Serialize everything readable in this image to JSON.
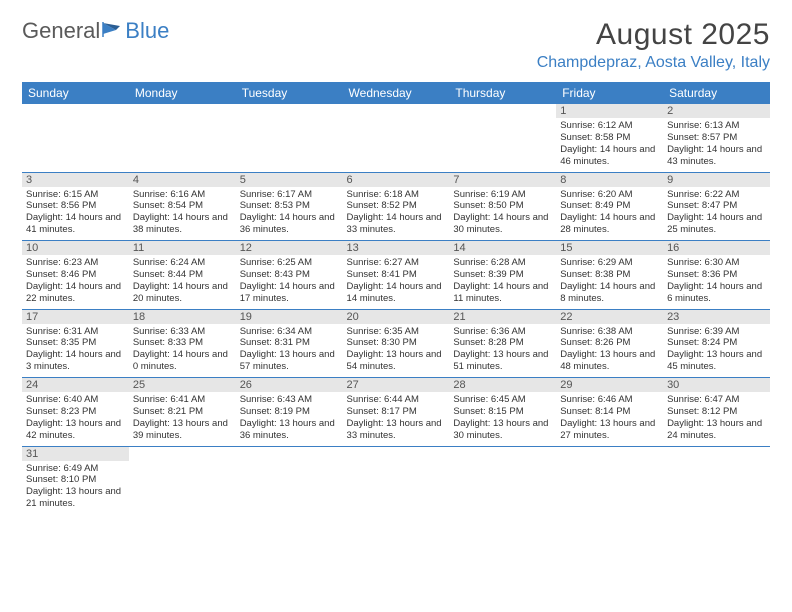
{
  "logo": {
    "word1": "General",
    "word2": "Blue"
  },
  "title": "August 2025",
  "location": "Champdepraz, Aosta Valley, Italy",
  "colors": {
    "header_bg": "#3b7fc4",
    "header_text": "#ffffff",
    "daynum_bg": "#e6e6e6",
    "row_divider": "#3b7fc4",
    "body_text": "#333333",
    "logo_gray": "#5a5a5a",
    "logo_blue": "#3b7fc4"
  },
  "day_headers": [
    "Sunday",
    "Monday",
    "Tuesday",
    "Wednesday",
    "Thursday",
    "Friday",
    "Saturday"
  ],
  "weeks": [
    [
      null,
      null,
      null,
      null,
      null,
      {
        "n": "1",
        "sr": "6:12 AM",
        "ss": "8:58 PM",
        "dl": "14 hours and 46 minutes."
      },
      {
        "n": "2",
        "sr": "6:13 AM",
        "ss": "8:57 PM",
        "dl": "14 hours and 43 minutes."
      }
    ],
    [
      {
        "n": "3",
        "sr": "6:15 AM",
        "ss": "8:56 PM",
        "dl": "14 hours and 41 minutes."
      },
      {
        "n": "4",
        "sr": "6:16 AM",
        "ss": "8:54 PM",
        "dl": "14 hours and 38 minutes."
      },
      {
        "n": "5",
        "sr": "6:17 AM",
        "ss": "8:53 PM",
        "dl": "14 hours and 36 minutes."
      },
      {
        "n": "6",
        "sr": "6:18 AM",
        "ss": "8:52 PM",
        "dl": "14 hours and 33 minutes."
      },
      {
        "n": "7",
        "sr": "6:19 AM",
        "ss": "8:50 PM",
        "dl": "14 hours and 30 minutes."
      },
      {
        "n": "8",
        "sr": "6:20 AM",
        "ss": "8:49 PM",
        "dl": "14 hours and 28 minutes."
      },
      {
        "n": "9",
        "sr": "6:22 AM",
        "ss": "8:47 PM",
        "dl": "14 hours and 25 minutes."
      }
    ],
    [
      {
        "n": "10",
        "sr": "6:23 AM",
        "ss": "8:46 PM",
        "dl": "14 hours and 22 minutes."
      },
      {
        "n": "11",
        "sr": "6:24 AM",
        "ss": "8:44 PM",
        "dl": "14 hours and 20 minutes."
      },
      {
        "n": "12",
        "sr": "6:25 AM",
        "ss": "8:43 PM",
        "dl": "14 hours and 17 minutes."
      },
      {
        "n": "13",
        "sr": "6:27 AM",
        "ss": "8:41 PM",
        "dl": "14 hours and 14 minutes."
      },
      {
        "n": "14",
        "sr": "6:28 AM",
        "ss": "8:39 PM",
        "dl": "14 hours and 11 minutes."
      },
      {
        "n": "15",
        "sr": "6:29 AM",
        "ss": "8:38 PM",
        "dl": "14 hours and 8 minutes."
      },
      {
        "n": "16",
        "sr": "6:30 AM",
        "ss": "8:36 PM",
        "dl": "14 hours and 6 minutes."
      }
    ],
    [
      {
        "n": "17",
        "sr": "6:31 AM",
        "ss": "8:35 PM",
        "dl": "14 hours and 3 minutes."
      },
      {
        "n": "18",
        "sr": "6:33 AM",
        "ss": "8:33 PM",
        "dl": "14 hours and 0 minutes."
      },
      {
        "n": "19",
        "sr": "6:34 AM",
        "ss": "8:31 PM",
        "dl": "13 hours and 57 minutes."
      },
      {
        "n": "20",
        "sr": "6:35 AM",
        "ss": "8:30 PM",
        "dl": "13 hours and 54 minutes."
      },
      {
        "n": "21",
        "sr": "6:36 AM",
        "ss": "8:28 PM",
        "dl": "13 hours and 51 minutes."
      },
      {
        "n": "22",
        "sr": "6:38 AM",
        "ss": "8:26 PM",
        "dl": "13 hours and 48 minutes."
      },
      {
        "n": "23",
        "sr": "6:39 AM",
        "ss": "8:24 PM",
        "dl": "13 hours and 45 minutes."
      }
    ],
    [
      {
        "n": "24",
        "sr": "6:40 AM",
        "ss": "8:23 PM",
        "dl": "13 hours and 42 minutes."
      },
      {
        "n": "25",
        "sr": "6:41 AM",
        "ss": "8:21 PM",
        "dl": "13 hours and 39 minutes."
      },
      {
        "n": "26",
        "sr": "6:43 AM",
        "ss": "8:19 PM",
        "dl": "13 hours and 36 minutes."
      },
      {
        "n": "27",
        "sr": "6:44 AM",
        "ss": "8:17 PM",
        "dl": "13 hours and 33 minutes."
      },
      {
        "n": "28",
        "sr": "6:45 AM",
        "ss": "8:15 PM",
        "dl": "13 hours and 30 minutes."
      },
      {
        "n": "29",
        "sr": "6:46 AM",
        "ss": "8:14 PM",
        "dl": "13 hours and 27 minutes."
      },
      {
        "n": "30",
        "sr": "6:47 AM",
        "ss": "8:12 PM",
        "dl": "13 hours and 24 minutes."
      }
    ],
    [
      {
        "n": "31",
        "sr": "6:49 AM",
        "ss": "8:10 PM",
        "dl": "13 hours and 21 minutes."
      },
      null,
      null,
      null,
      null,
      null,
      null
    ]
  ],
  "labels": {
    "sunrise": "Sunrise:",
    "sunset": "Sunset:",
    "daylight": "Daylight:"
  }
}
